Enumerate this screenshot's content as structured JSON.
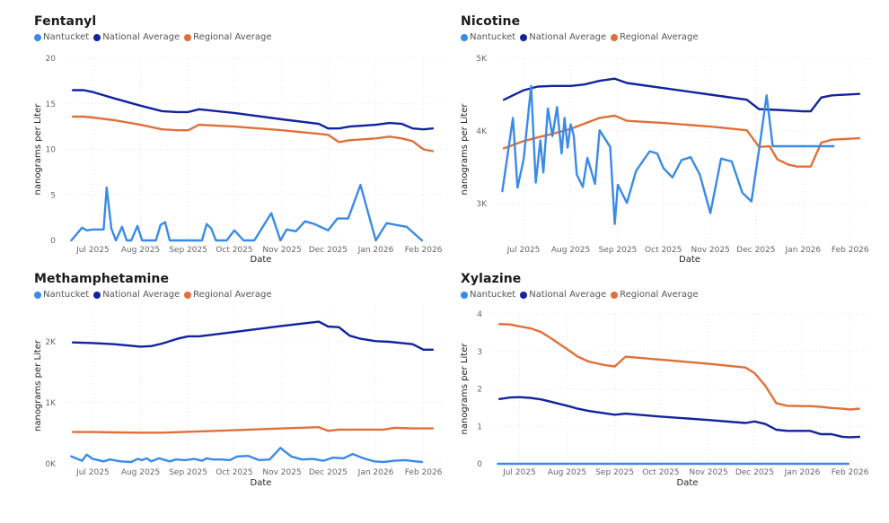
{
  "colors": {
    "nantucket": "#3a8ae8",
    "national": "#12239e",
    "regional": "#e0703a"
  },
  "chart_data": [
    {
      "type": "line",
      "title": "Fentanyl",
      "xlabel": "Date",
      "ylabel": "nanograms per Liter",
      "ylim": [
        0,
        20
      ],
      "yticks": [
        "0",
        "5",
        "10",
        "15",
        "20"
      ],
      "ytick_values": [
        0,
        5,
        10,
        15,
        20
      ],
      "xticks": [
        "Jul 2025",
        "Aug 2025",
        "Sep 2025",
        "Oct 2025",
        "Nov 2025",
        "Dec 2025",
        "Jan 2026",
        "Feb 2026"
      ],
      "xtick_dates": [
        "2025-07-01",
        "2025-08-01",
        "2025-09-01",
        "2025-10-01",
        "2025-11-01",
        "2025-12-01",
        "2026-01-01",
        "2026-02-01"
      ],
      "xlim": [
        "2025-06-15",
        "2026-02-10"
      ],
      "grid": true,
      "legend": [
        "Nantucket",
        "National Average",
        "Regional Average"
      ],
      "legend_position": "top-left",
      "series": [
        {
          "name": "Nantucket",
          "key": "nantucket",
          "x": [
            "2025-06-17",
            "2025-06-24",
            "2025-06-27",
            "2025-07-01",
            "2025-07-08",
            "2025-07-10",
            "2025-07-13",
            "2025-07-16",
            "2025-07-20",
            "2025-07-23",
            "2025-07-26",
            "2025-07-30",
            "2025-08-02",
            "2025-08-05",
            "2025-08-11",
            "2025-08-14",
            "2025-08-17",
            "2025-08-20",
            "2025-09-10",
            "2025-09-13",
            "2025-09-16",
            "2025-09-19",
            "2025-09-26",
            "2025-10-01",
            "2025-10-07",
            "2025-10-14",
            "2025-10-25",
            "2025-10-31",
            "2025-11-04",
            "2025-11-10",
            "2025-11-16",
            "2025-11-22",
            "2025-12-01",
            "2025-12-07",
            "2025-12-14",
            "2025-12-22",
            "2026-01-01",
            "2026-01-08",
            "2026-01-14",
            "2026-01-21",
            "2026-01-31"
          ],
          "values": [
            0,
            1.4,
            1.1,
            1.2,
            1.2,
            5.8,
            1.3,
            0,
            1.5,
            0,
            0,
            1.6,
            0,
            0,
            0,
            1.7,
            2.0,
            0,
            0,
            1.8,
            1.3,
            0,
            0,
            1.1,
            0,
            0,
            3.0,
            0,
            1.2,
            1.0,
            2.1,
            1.8,
            1.1,
            2.4,
            2.4,
            6.1,
            0,
            1.9,
            1.7,
            1.5,
            0
          ]
        },
        {
          "name": "National Average",
          "key": "national",
          "x": [
            "2025-06-18",
            "2025-06-25",
            "2025-07-01",
            "2025-07-15",
            "2025-08-01",
            "2025-08-15",
            "2025-08-25",
            "2025-09-01",
            "2025-09-08",
            "2025-10-01",
            "2025-11-01",
            "2025-11-25",
            "2025-12-01",
            "2025-12-08",
            "2025-12-15",
            "2026-01-01",
            "2026-01-10",
            "2026-01-18",
            "2026-01-25",
            "2026-02-01",
            "2026-02-07"
          ],
          "values": [
            16.5,
            16.5,
            16.3,
            15.6,
            14.8,
            14.2,
            14.1,
            14.1,
            14.4,
            14.0,
            13.3,
            12.8,
            12.3,
            12.3,
            12.5,
            12.7,
            12.9,
            12.8,
            12.3,
            12.2,
            12.3
          ]
        },
        {
          "name": "Regional Average",
          "key": "regional",
          "x": [
            "2025-06-18",
            "2025-06-25",
            "2025-07-01",
            "2025-07-15",
            "2025-08-01",
            "2025-08-15",
            "2025-08-25",
            "2025-09-01",
            "2025-09-08",
            "2025-10-01",
            "2025-11-01",
            "2025-11-25",
            "2025-12-01",
            "2025-12-08",
            "2025-12-15",
            "2026-01-01",
            "2026-01-10",
            "2026-01-18",
            "2026-01-25",
            "2026-02-01",
            "2026-02-07"
          ],
          "values": [
            13.6,
            13.6,
            13.5,
            13.2,
            12.7,
            12.2,
            12.1,
            12.1,
            12.7,
            12.5,
            12.1,
            11.7,
            11.6,
            10.8,
            11.0,
            11.2,
            11.4,
            11.2,
            10.9,
            10.0,
            9.8
          ]
        }
      ]
    },
    {
      "type": "line",
      "title": "Nicotine",
      "xlabel": "Date",
      "ylabel": "nanograms per Liter",
      "ylim": [
        2500,
        5000
      ],
      "yticks": [
        "3K",
        "4K",
        "5K"
      ],
      "ytick_values": [
        3000,
        4000,
        5000
      ],
      "xticks": [
        "Jul 2025",
        "Aug 2025",
        "Sep 2025",
        "Oct 2025",
        "Nov 2025",
        "Dec 2025",
        "Jan 2026",
        "Feb 2026"
      ],
      "xtick_dates": [
        "2025-07-01",
        "2025-08-01",
        "2025-09-01",
        "2025-10-01",
        "2025-11-01",
        "2025-12-01",
        "2026-01-01",
        "2026-02-01"
      ],
      "xlim": [
        "2025-06-15",
        "2026-02-10"
      ],
      "grid": true,
      "legend": [
        "Nantucket",
        "National Average",
        "Regional Average"
      ],
      "legend_position": "top-left",
      "series": [
        {
          "name": "Nantucket",
          "key": "nantucket",
          "x": [
            "2025-06-17",
            "2025-06-24",
            "2025-06-27",
            "2025-07-01",
            "2025-07-06",
            "2025-07-09",
            "2025-07-12",
            "2025-07-14",
            "2025-07-17",
            "2025-07-20",
            "2025-07-23",
            "2025-07-26",
            "2025-07-28",
            "2025-07-30",
            "2025-08-01",
            "2025-08-03",
            "2025-08-05",
            "2025-08-09",
            "2025-08-12",
            "2025-08-14",
            "2025-08-17",
            "2025-08-20",
            "2025-08-27",
            "2025-08-30",
            "2025-09-01",
            "2025-09-07",
            "2025-09-13",
            "2025-09-20",
            "2025-09-22",
            "2025-09-27",
            "2025-10-01",
            "2025-10-07",
            "2025-10-13",
            "2025-10-19",
            "2025-10-25",
            "2025-11-01",
            "2025-11-08",
            "2025-11-15",
            "2025-11-22",
            "2025-11-28",
            "2025-12-04",
            "2025-12-08",
            "2025-12-12",
            "2025-12-16",
            "2025-12-26",
            "2026-01-01",
            "2026-01-08",
            "2026-01-14",
            "2026-01-21"
          ],
          "values": [
            3170,
            4180,
            3220,
            3610,
            4620,
            3290,
            3870,
            3430,
            4310,
            3930,
            4330,
            3690,
            4180,
            3770,
            4090,
            3940,
            3400,
            3230,
            3630,
            3490,
            3270,
            4010,
            3780,
            2720,
            3260,
            3010,
            3450,
            3660,
            3720,
            3690,
            3490,
            3360,
            3600,
            3640,
            3400,
            2870,
            3620,
            3580,
            3150,
            3030,
            3890,
            4490,
            3790,
            3790,
            3790,
            3790,
            3790,
            3790,
            3790
          ]
        },
        {
          "name": "National Average",
          "key": "national",
          "x": [
            "2025-06-18",
            "2025-07-01",
            "2025-07-10",
            "2025-07-20",
            "2025-08-01",
            "2025-08-10",
            "2025-08-20",
            "2025-08-30",
            "2025-09-07",
            "2025-10-01",
            "2025-11-01",
            "2025-11-25",
            "2025-12-03",
            "2025-12-15",
            "2026-01-01",
            "2026-01-06",
            "2026-01-13",
            "2026-01-20",
            "2026-02-07"
          ],
          "values": [
            4430,
            4560,
            4610,
            4620,
            4620,
            4640,
            4690,
            4720,
            4660,
            4590,
            4500,
            4430,
            4300,
            4290,
            4270,
            4270,
            4460,
            4490,
            4510
          ]
        },
        {
          "name": "Regional Average",
          "key": "regional",
          "x": [
            "2025-06-18",
            "2025-07-01",
            "2025-07-10",
            "2025-07-20",
            "2025-08-01",
            "2025-08-10",
            "2025-08-20",
            "2025-08-30",
            "2025-09-07",
            "2025-10-01",
            "2025-11-01",
            "2025-11-25",
            "2025-12-03",
            "2025-12-10",
            "2025-12-15",
            "2025-12-22",
            "2025-12-28",
            "2026-01-01",
            "2026-01-06",
            "2026-01-13",
            "2026-01-20",
            "2026-02-07"
          ],
          "values": [
            3760,
            3860,
            3910,
            3960,
            4030,
            4100,
            4180,
            4210,
            4140,
            4110,
            4060,
            4010,
            3780,
            3790,
            3610,
            3540,
            3510,
            3510,
            3510,
            3840,
            3880,
            3900
          ]
        }
      ]
    },
    {
      "type": "line",
      "title": "Methamphetamine",
      "xlabel": "Date",
      "ylabel": "nanograms per Liter",
      "ylim": [
        0,
        2600
      ],
      "yticks": [
        "0K",
        "1K",
        "2K"
      ],
      "ytick_values": [
        0,
        1000,
        2000
      ],
      "xticks": [
        "Jul 2025",
        "Aug 2025",
        "Sep 2025",
        "Oct 2025",
        "Nov 2025",
        "Dec 2025",
        "Jan 2026",
        "Feb 2026"
      ],
      "xtick_dates": [
        "2025-07-01",
        "2025-08-01",
        "2025-09-01",
        "2025-10-01",
        "2025-11-01",
        "2025-12-01",
        "2026-01-01",
        "2026-02-01"
      ],
      "xlim": [
        "2025-06-15",
        "2026-02-10"
      ],
      "grid": true,
      "legend": [
        "Nantucket",
        "National Average",
        "Regional Average"
      ],
      "legend_position": "top-left",
      "series": [
        {
          "name": "Nantucket",
          "key": "nantucket",
          "x": [
            "2025-06-17",
            "2025-06-24",
            "2025-06-27",
            "2025-07-01",
            "2025-07-08",
            "2025-07-12",
            "2025-07-19",
            "2025-07-26",
            "2025-07-30",
            "2025-08-02",
            "2025-08-05",
            "2025-08-08",
            "2025-08-13",
            "2025-08-20",
            "2025-08-24",
            "2025-08-30",
            "2025-09-05",
            "2025-09-10",
            "2025-09-13",
            "2025-09-17",
            "2025-09-22",
            "2025-09-28",
            "2025-10-03",
            "2025-10-10",
            "2025-10-17",
            "2025-10-24",
            "2025-10-31",
            "2025-11-07",
            "2025-11-14",
            "2025-11-21",
            "2025-11-28",
            "2025-12-04",
            "2025-12-11",
            "2025-12-17",
            "2025-12-24",
            "2025-12-31",
            "2026-01-06",
            "2026-01-13",
            "2026-01-20",
            "2026-01-27",
            "2026-01-31"
          ],
          "values": [
            120,
            50,
            150,
            80,
            40,
            70,
            40,
            30,
            80,
            60,
            90,
            40,
            90,
            40,
            70,
            60,
            80,
            50,
            90,
            70,
            70,
            60,
            120,
            130,
            60,
            70,
            260,
            120,
            70,
            80,
            50,
            100,
            90,
            160,
            90,
            40,
            30,
            50,
            60,
            40,
            30
          ]
        },
        {
          "name": "National Average",
          "key": "national",
          "x": [
            "2025-06-18",
            "2025-07-01",
            "2025-07-15",
            "2025-08-01",
            "2025-08-08",
            "2025-08-15",
            "2025-08-25",
            "2025-09-01",
            "2025-09-08",
            "2025-10-01",
            "2025-11-01",
            "2025-11-25",
            "2025-12-01",
            "2025-12-08",
            "2025-12-15",
            "2025-12-22",
            "2026-01-01",
            "2026-01-10",
            "2026-01-18",
            "2026-01-25",
            "2026-02-01",
            "2026-02-07"
          ],
          "values": [
            1990,
            1980,
            1960,
            1920,
            1930,
            1970,
            2050,
            2090,
            2090,
            2160,
            2260,
            2330,
            2250,
            2240,
            2100,
            2050,
            2010,
            2000,
            1980,
            1960,
            1870,
            1870
          ]
        },
        {
          "name": "Regional Average",
          "key": "regional",
          "x": [
            "2025-06-18",
            "2025-07-01",
            "2025-07-15",
            "2025-08-01",
            "2025-08-15",
            "2025-09-01",
            "2025-10-01",
            "2025-11-01",
            "2025-11-25",
            "2025-12-01",
            "2025-12-08",
            "2026-01-01",
            "2026-01-06",
            "2026-01-13",
            "2026-01-25",
            "2026-02-07"
          ],
          "values": [
            520,
            520,
            515,
            510,
            510,
            525,
            550,
            580,
            600,
            540,
            560,
            560,
            560,
            590,
            580,
            580
          ]
        }
      ]
    },
    {
      "type": "line",
      "title": "Xylazine",
      "xlabel": "Date",
      "ylabel": "nanograms per Liter",
      "ylim": [
        0,
        4
      ],
      "yticks": [
        "0",
        "1",
        "2",
        "3",
        "4"
      ],
      "ytick_values": [
        0,
        1,
        2,
        3,
        4
      ],
      "xticks": [
        "Jul 2025",
        "Aug 2025",
        "Sep 2025",
        "Oct 2025",
        "Nov 2025",
        "Dec 2025",
        "Jan 2026",
        "Feb 2026"
      ],
      "xtick_dates": [
        "2025-07-01",
        "2025-08-01",
        "2025-09-01",
        "2025-10-01",
        "2025-11-01",
        "2025-12-01",
        "2026-01-01",
        "2026-02-01"
      ],
      "xlim": [
        "2025-06-15",
        "2026-02-10"
      ],
      "grid": true,
      "legend": [
        "Nantucket",
        "National Average",
        "Regional Average"
      ],
      "legend_position": "top-left",
      "series": [
        {
          "name": "Nantucket",
          "key": "nantucket",
          "x": [
            "2025-06-17",
            "2026-01-31"
          ],
          "values": [
            0,
            0
          ]
        },
        {
          "name": "National Average",
          "key": "national",
          "x": [
            "2025-06-18",
            "2025-06-25",
            "2025-07-01",
            "2025-07-08",
            "2025-07-15",
            "2025-07-22",
            "2025-08-01",
            "2025-08-08",
            "2025-08-15",
            "2025-08-25",
            "2025-09-01",
            "2025-09-08",
            "2025-10-01",
            "2025-11-01",
            "2025-11-25",
            "2025-12-01",
            "2025-12-08",
            "2025-12-15",
            "2025-12-22",
            "2026-01-01",
            "2026-01-06",
            "2026-01-13",
            "2026-01-20",
            "2026-01-27",
            "2026-02-01",
            "2026-02-07"
          ],
          "values": [
            1.73,
            1.77,
            1.78,
            1.76,
            1.72,
            1.65,
            1.55,
            1.47,
            1.41,
            1.35,
            1.31,
            1.34,
            1.26,
            1.17,
            1.09,
            1.13,
            1.06,
            0.91,
            0.88,
            0.88,
            0.88,
            0.79,
            0.79,
            0.72,
            0.71,
            0.72
          ]
        },
        {
          "name": "Regional Average",
          "key": "regional",
          "x": [
            "2025-06-18",
            "2025-06-25",
            "2025-07-01",
            "2025-07-08",
            "2025-07-15",
            "2025-07-22",
            "2025-08-01",
            "2025-08-08",
            "2025-08-15",
            "2025-08-25",
            "2025-09-01",
            "2025-09-08",
            "2025-10-01",
            "2025-11-01",
            "2025-11-25",
            "2025-12-01",
            "2025-12-08",
            "2025-12-15",
            "2025-12-22",
            "2026-01-01",
            "2026-01-06",
            "2026-01-13",
            "2026-01-20",
            "2026-01-27",
            "2026-02-01",
            "2026-02-07"
          ],
          "values": [
            3.73,
            3.72,
            3.67,
            3.62,
            3.52,
            3.34,
            3.06,
            2.86,
            2.73,
            2.64,
            2.6,
            2.86,
            2.78,
            2.67,
            2.57,
            2.42,
            2.08,
            1.62,
            1.55,
            1.54,
            1.54,
            1.52,
            1.49,
            1.47,
            1.45,
            1.47
          ]
        }
      ]
    }
  ]
}
